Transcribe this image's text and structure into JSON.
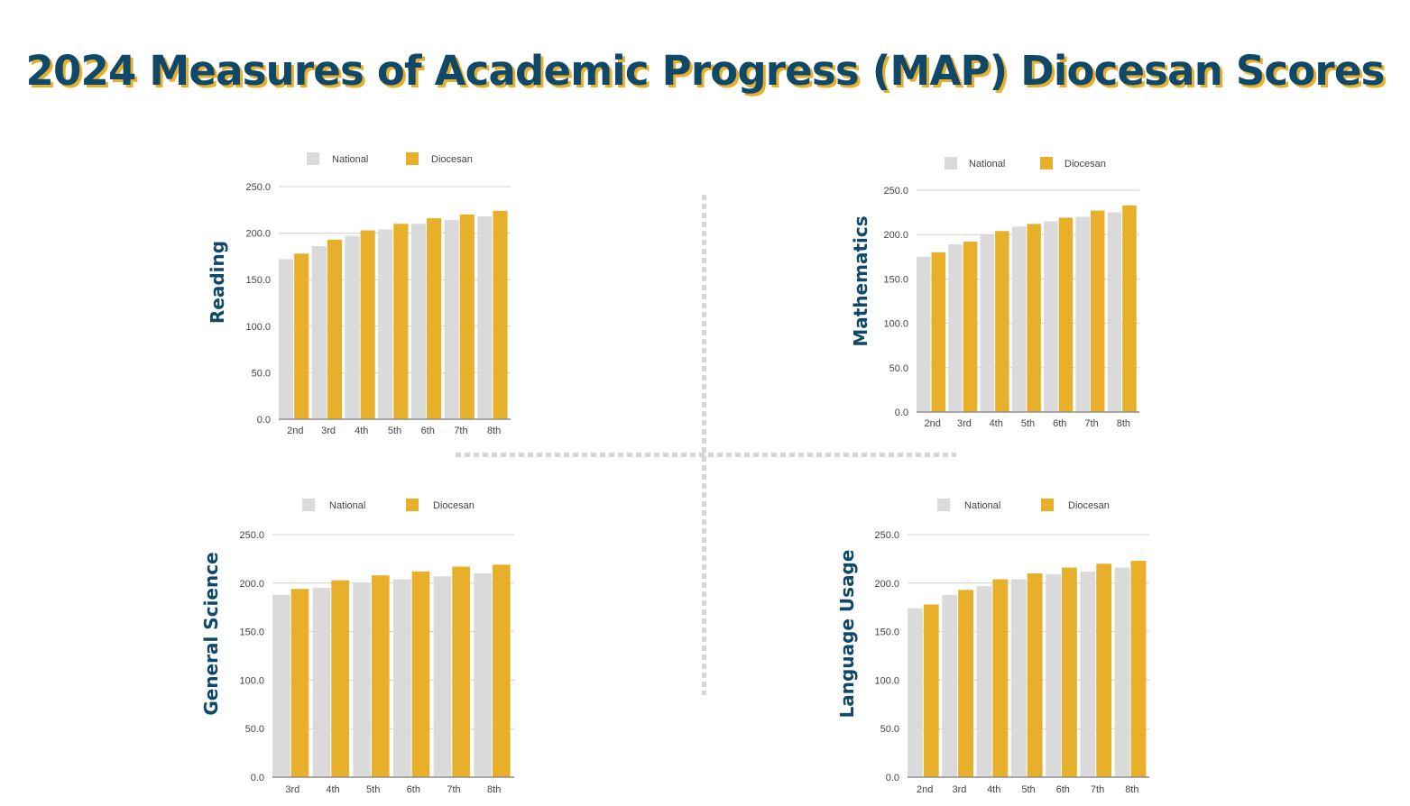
{
  "title": "2024 Measures of Academic Progress (MAP) Diocesan Scores",
  "colors": {
    "title_text": "#0f4868",
    "title_shadow": "#e8af2a",
    "national": "#dadada",
    "diocesan": "#e8af2a",
    "ylabel": "#0f4868"
  },
  "chart_data": [
    {
      "type": "bar",
      "title": "Reading",
      "ylabel": "Reading",
      "xlabel": "",
      "categories": [
        "2nd",
        "3rd",
        "4th",
        "5th",
        "6th",
        "7th",
        "8th"
      ],
      "series": [
        {
          "name": "National",
          "values": [
            172,
            186,
            197,
            204,
            210,
            214,
            218
          ]
        },
        {
          "name": "Diocesan",
          "values": [
            178,
            193,
            203,
            210,
            216,
            220,
            224
          ]
        }
      ],
      "ylim": [
        0,
        250
      ],
      "yticks": [
        "0.0",
        "50.0",
        "100.0",
        "150.0",
        "200.0",
        "250.0"
      ],
      "legend": "top-center"
    },
    {
      "type": "bar",
      "title": "Mathematics",
      "ylabel": "Mathematics",
      "xlabel": "",
      "categories": [
        "2nd",
        "3rd",
        "4th",
        "5th",
        "6th",
        "7th",
        "8th"
      ],
      "series": [
        {
          "name": "National",
          "values": [
            175,
            189,
            200,
            209,
            215,
            220,
            225
          ]
        },
        {
          "name": "Diocesan",
          "values": [
            180,
            192,
            204,
            212,
            219,
            227,
            233
          ]
        }
      ],
      "ylim": [
        0,
        250
      ],
      "yticks": [
        "0.0",
        "50.0",
        "100.0",
        "150.0",
        "200.0",
        "250.0"
      ],
      "legend": "top-center"
    },
    {
      "type": "bar",
      "title": "General Science",
      "ylabel": "General Science",
      "xlabel": "",
      "categories": [
        "3rd",
        "4th",
        "5th",
        "6th",
        "7th",
        "8th"
      ],
      "series": [
        {
          "name": "National",
          "values": [
            188,
            195,
            200,
            204,
            207,
            210
          ]
        },
        {
          "name": "Diocesan",
          "values": [
            194,
            203,
            208,
            212,
            217,
            219
          ]
        }
      ],
      "ylim": [
        0,
        250
      ],
      "yticks": [
        "0.0",
        "50.0",
        "100.0",
        "150.0",
        "200.0",
        "250.0"
      ],
      "legend": "top-center"
    },
    {
      "type": "bar",
      "title": "Language Usage",
      "ylabel": "Language Usage",
      "xlabel": "",
      "categories": [
        "2nd",
        "3rd",
        "4th",
        "5th",
        "6th",
        "7th",
        "8th"
      ],
      "series": [
        {
          "name": "National",
          "values": [
            174,
            188,
            197,
            204,
            209,
            212,
            216
          ]
        },
        {
          "name": "Diocesan",
          "values": [
            178,
            193,
            204,
            210,
            216,
            220,
            223
          ]
        }
      ],
      "ylim": [
        0,
        250
      ],
      "yticks": [
        "0.0",
        "50.0",
        "100.0",
        "150.0",
        "200.0",
        "250.0"
      ],
      "legend": "top-center"
    }
  ]
}
